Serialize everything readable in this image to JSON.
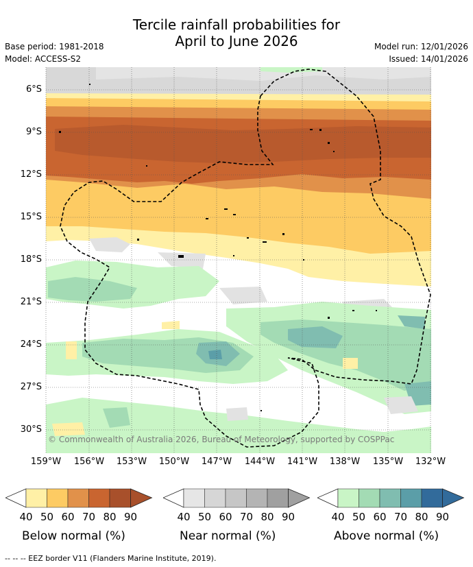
{
  "title_line1": "Tercile rainfall probabilities for",
  "title_line2": "April to June 2026",
  "base_period": "Base period: 1981-2018",
  "model": "Model: ACCESS-S2",
  "model_run": "Model run: 12/01/2026",
  "issued": "Issued: 14/01/2026",
  "map": {
    "lat_labels": [
      "6°S",
      "9°S",
      "12°S",
      "15°S",
      "18°S",
      "21°S",
      "24°S",
      "27°S",
      "30°S"
    ],
    "lon_labels": [
      "159°W",
      "156°W",
      "153°W",
      "150°W",
      "147°W",
      "144°W",
      "141°W",
      "138°W",
      "135°W",
      "132°W"
    ],
    "copyright": "© Commonwealth of Australia 2026, Bureau of Meteorology, supported by COSPPac",
    "colors": {
      "below": [
        "#fff0a6",
        "#fdcb63",
        "#e1914a",
        "#c96530",
        "#a8502b"
      ],
      "near": [
        "#e2e2e2",
        "#d3d3d3",
        "#c3c3c3",
        "#b3b3b3",
        "#a3a3a3"
      ],
      "above": [
        "#c9f5c6",
        "#a3dbb4",
        "#80bdb0",
        "#5b9ea8",
        "#326b9b"
      ]
    }
  },
  "legends": [
    {
      "title": "Below normal (%)",
      "ticks": [
        "40",
        "50",
        "60",
        "70",
        "80",
        "90"
      ],
      "colors": [
        "#fff0a6",
        "#fdcb63",
        "#e1914a",
        "#c96530",
        "#a8502b"
      ]
    },
    {
      "title": "Near normal (%)",
      "ticks": [
        "40",
        "50",
        "60",
        "70",
        "80",
        "90"
      ],
      "colors": [
        "#e6e6e6",
        "#d6d6d6",
        "#c6c6c6",
        "#b4b4b4",
        "#a0a0a0"
      ]
    },
    {
      "title": "Above normal (%)",
      "ticks": [
        "40",
        "50",
        "60",
        "70",
        "80",
        "90"
      ],
      "colors": [
        "#c9f5c6",
        "#a3dbb4",
        "#80bdb0",
        "#5b9ea8",
        "#326b9b"
      ]
    }
  ],
  "footnote": "--  --  -- EEZ border V11 (Flanders Marine Institute, 2019)."
}
